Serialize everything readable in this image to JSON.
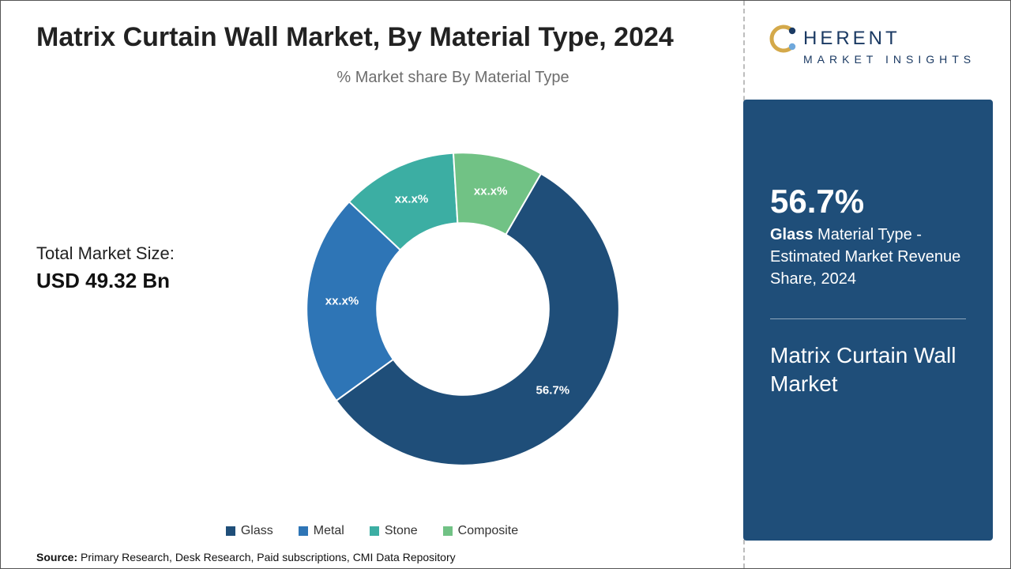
{
  "title": "Matrix Curtain Wall Market, By Material Type, 2024",
  "subtitle": "% Market share By Material Type",
  "total_market": {
    "label": "Total Market Size:",
    "value": "USD 49.32 Bn"
  },
  "source": {
    "label": "Source:",
    "text": " Primary Research, Desk Research, Paid subscriptions, CMI Data Repository"
  },
  "logo": {
    "main": "HERENT",
    "sub": "MARKET INSIGHTS"
  },
  "panel": {
    "stat": "56.7%",
    "desc_bold": "Glass",
    "desc_rest": " Material Type - Estimated Market Revenue Share, 2024",
    "market_name": "Matrix Curtain Wall Market"
  },
  "chart": {
    "type": "donut",
    "inner_radius_ratio": 0.55,
    "background_color": "#ffffff",
    "categories": [
      "Glass",
      "Metal",
      "Stone",
      "Composite"
    ],
    "values": [
      56.7,
      22.0,
      12.0,
      9.3
    ],
    "display_labels": [
      "56.7%",
      "xx.x%",
      "xx.x%",
      "xx.x%"
    ],
    "colors": [
      "#1f4e79",
      "#2e75b6",
      "#3caea3",
      "#71c285"
    ],
    "start_angle_deg": -60,
    "label_font_size": 15,
    "legend_font_size": 16
  },
  "colors": {
    "panel_bg": "#1f4e79",
    "title": "#222222",
    "subtitle": "#6d6d6d",
    "divider": "#bdbdbd",
    "logo_ring": "#d4a94a",
    "logo_dot_dark": "#1b3a63",
    "logo_dot_light": "#6fa8dc"
  }
}
